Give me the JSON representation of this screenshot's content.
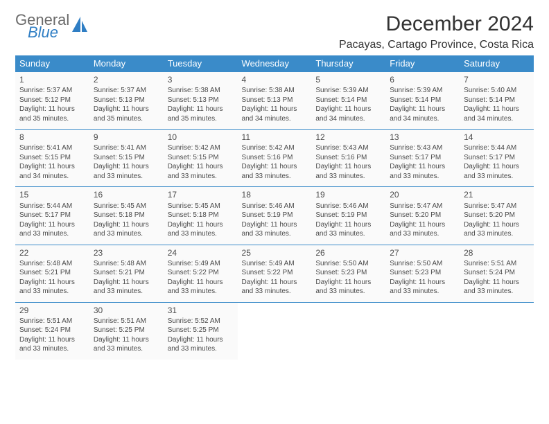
{
  "brand": {
    "word1": "General",
    "word2": "Blue",
    "accent": "#2f7ec4",
    "gray": "#6b6b6b"
  },
  "header": {
    "title": "December 2024",
    "location": "Pacayas, Cartago Province, Costa Rica"
  },
  "calendar": {
    "header_bg": "#3a8bc9",
    "header_fg": "#ffffff",
    "cell_border": "#3a8bc9",
    "cell_bg": "#fafafa",
    "text_color": "#4a4a4a",
    "day_header_fontsize": 13,
    "daynum_fontsize": 12,
    "body_fontsize": 10,
    "columns": [
      "Sunday",
      "Monday",
      "Tuesday",
      "Wednesday",
      "Thursday",
      "Friday",
      "Saturday"
    ],
    "days": [
      {
        "n": 1,
        "sr": "5:37 AM",
        "ss": "5:12 PM",
        "dl": "11 hours and 35 minutes."
      },
      {
        "n": 2,
        "sr": "5:37 AM",
        "ss": "5:13 PM",
        "dl": "11 hours and 35 minutes."
      },
      {
        "n": 3,
        "sr": "5:38 AM",
        "ss": "5:13 PM",
        "dl": "11 hours and 35 minutes."
      },
      {
        "n": 4,
        "sr": "5:38 AM",
        "ss": "5:13 PM",
        "dl": "11 hours and 34 minutes."
      },
      {
        "n": 5,
        "sr": "5:39 AM",
        "ss": "5:14 PM",
        "dl": "11 hours and 34 minutes."
      },
      {
        "n": 6,
        "sr": "5:39 AM",
        "ss": "5:14 PM",
        "dl": "11 hours and 34 minutes."
      },
      {
        "n": 7,
        "sr": "5:40 AM",
        "ss": "5:14 PM",
        "dl": "11 hours and 34 minutes."
      },
      {
        "n": 8,
        "sr": "5:41 AM",
        "ss": "5:15 PM",
        "dl": "11 hours and 34 minutes."
      },
      {
        "n": 9,
        "sr": "5:41 AM",
        "ss": "5:15 PM",
        "dl": "11 hours and 33 minutes."
      },
      {
        "n": 10,
        "sr": "5:42 AM",
        "ss": "5:15 PM",
        "dl": "11 hours and 33 minutes."
      },
      {
        "n": 11,
        "sr": "5:42 AM",
        "ss": "5:16 PM",
        "dl": "11 hours and 33 minutes."
      },
      {
        "n": 12,
        "sr": "5:43 AM",
        "ss": "5:16 PM",
        "dl": "11 hours and 33 minutes."
      },
      {
        "n": 13,
        "sr": "5:43 AM",
        "ss": "5:17 PM",
        "dl": "11 hours and 33 minutes."
      },
      {
        "n": 14,
        "sr": "5:44 AM",
        "ss": "5:17 PM",
        "dl": "11 hours and 33 minutes."
      },
      {
        "n": 15,
        "sr": "5:44 AM",
        "ss": "5:17 PM",
        "dl": "11 hours and 33 minutes."
      },
      {
        "n": 16,
        "sr": "5:45 AM",
        "ss": "5:18 PM",
        "dl": "11 hours and 33 minutes."
      },
      {
        "n": 17,
        "sr": "5:45 AM",
        "ss": "5:18 PM",
        "dl": "11 hours and 33 minutes."
      },
      {
        "n": 18,
        "sr": "5:46 AM",
        "ss": "5:19 PM",
        "dl": "11 hours and 33 minutes."
      },
      {
        "n": 19,
        "sr": "5:46 AM",
        "ss": "5:19 PM",
        "dl": "11 hours and 33 minutes."
      },
      {
        "n": 20,
        "sr": "5:47 AM",
        "ss": "5:20 PM",
        "dl": "11 hours and 33 minutes."
      },
      {
        "n": 21,
        "sr": "5:47 AM",
        "ss": "5:20 PM",
        "dl": "11 hours and 33 minutes."
      },
      {
        "n": 22,
        "sr": "5:48 AM",
        "ss": "5:21 PM",
        "dl": "11 hours and 33 minutes."
      },
      {
        "n": 23,
        "sr": "5:48 AM",
        "ss": "5:21 PM",
        "dl": "11 hours and 33 minutes."
      },
      {
        "n": 24,
        "sr": "5:49 AM",
        "ss": "5:22 PM",
        "dl": "11 hours and 33 minutes."
      },
      {
        "n": 25,
        "sr": "5:49 AM",
        "ss": "5:22 PM",
        "dl": "11 hours and 33 minutes."
      },
      {
        "n": 26,
        "sr": "5:50 AM",
        "ss": "5:23 PM",
        "dl": "11 hours and 33 minutes."
      },
      {
        "n": 27,
        "sr": "5:50 AM",
        "ss": "5:23 PM",
        "dl": "11 hours and 33 minutes."
      },
      {
        "n": 28,
        "sr": "5:51 AM",
        "ss": "5:24 PM",
        "dl": "11 hours and 33 minutes."
      },
      {
        "n": 29,
        "sr": "5:51 AM",
        "ss": "5:24 PM",
        "dl": "11 hours and 33 minutes."
      },
      {
        "n": 30,
        "sr": "5:51 AM",
        "ss": "5:25 PM",
        "dl": "11 hours and 33 minutes."
      },
      {
        "n": 31,
        "sr": "5:52 AM",
        "ss": "5:25 PM",
        "dl": "11 hours and 33 minutes."
      }
    ],
    "labels": {
      "sunrise": "Sunrise:",
      "sunset": "Sunset:",
      "daylight": "Daylight:"
    }
  }
}
